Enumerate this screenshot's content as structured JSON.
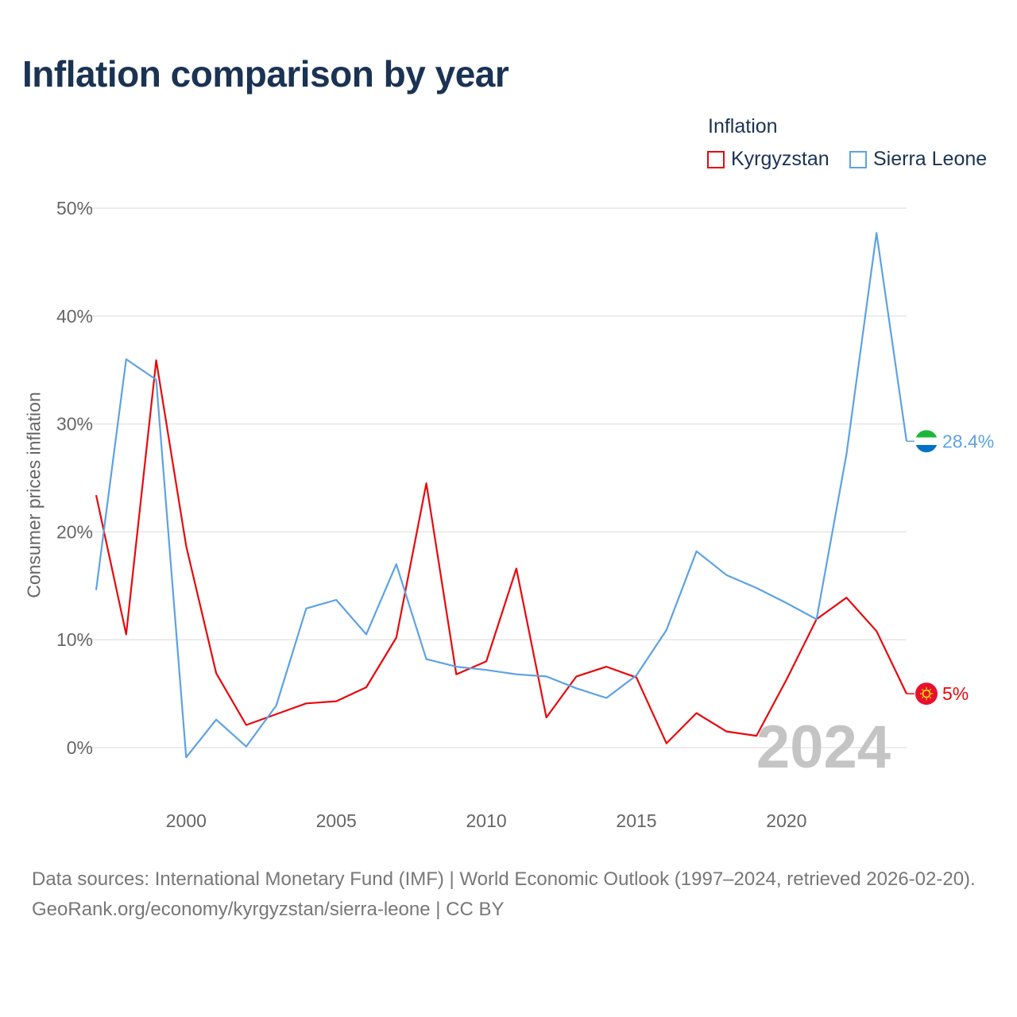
{
  "title": "Inflation comparison by year",
  "legend": {
    "title": "Inflation",
    "items": [
      {
        "label": "Kyrgyzstan",
        "color": "#e8080c"
      },
      {
        "label": "Sierra Leone",
        "color": "#5da2e3"
      }
    ]
  },
  "footer": {
    "sources": "Data sources: International Monetary Fund (IMF) | World Economic Outlook (1997–2024, retrieved 2026-02-20).",
    "credit": "GeoRank.org/economy/kyrgyzstan/sierra-leone | CC BY"
  },
  "chart_data": {
    "type": "line",
    "title": "Inflation comparison by year",
    "xlabel": "",
    "ylabel": "Consumer prices inflation",
    "x": [
      1997,
      1998,
      1999,
      2000,
      2001,
      2002,
      2003,
      2004,
      2005,
      2006,
      2007,
      2008,
      2009,
      2010,
      2011,
      2012,
      2013,
      2014,
      2015,
      2016,
      2017,
      2018,
      2019,
      2020,
      2021,
      2022,
      2023,
      2024
    ],
    "xlim": [
      1997,
      2024
    ],
    "ylim": [
      -6,
      50
    ],
    "yticks": [
      0,
      10,
      20,
      30,
      40,
      50
    ],
    "ytick_labels": [
      "0%",
      "10%",
      "20%",
      "30%",
      "40%",
      "50%"
    ],
    "xticks": [
      2000,
      2005,
      2010,
      2015,
      2020
    ],
    "xtick_labels": [
      "2000",
      "2005",
      "2010",
      "2015",
      "2020"
    ],
    "year_watermark": "2024",
    "series": [
      {
        "name": "Kyrgyzstan",
        "color": "#e8080c",
        "end_label": "5%",
        "flag": "kyrgyzstan-flag",
        "values": [
          23.4,
          10.5,
          35.9,
          18.7,
          6.9,
          2.1,
          3.1,
          4.1,
          4.3,
          5.6,
          10.2,
          24.5,
          6.8,
          8.0,
          16.6,
          2.8,
          6.6,
          7.5,
          6.5,
          0.4,
          3.2,
          1.5,
          1.1,
          6.3,
          11.9,
          13.9,
          10.8,
          5.0
        ]
      },
      {
        "name": "Sierra Leone",
        "color": "#5da2e3",
        "end_label": "28.4%",
        "flag": "sierra-leone-flag",
        "values": [
          14.6,
          36.0,
          34.1,
          -0.9,
          2.6,
          0.1,
          3.9,
          12.9,
          13.7,
          10.5,
          17.0,
          8.2,
          7.5,
          7.2,
          6.8,
          6.6,
          5.5,
          4.6,
          6.7,
          10.9,
          18.2,
          16.0,
          14.8,
          13.4,
          11.9,
          27.2,
          47.7,
          28.4
        ]
      }
    ]
  }
}
